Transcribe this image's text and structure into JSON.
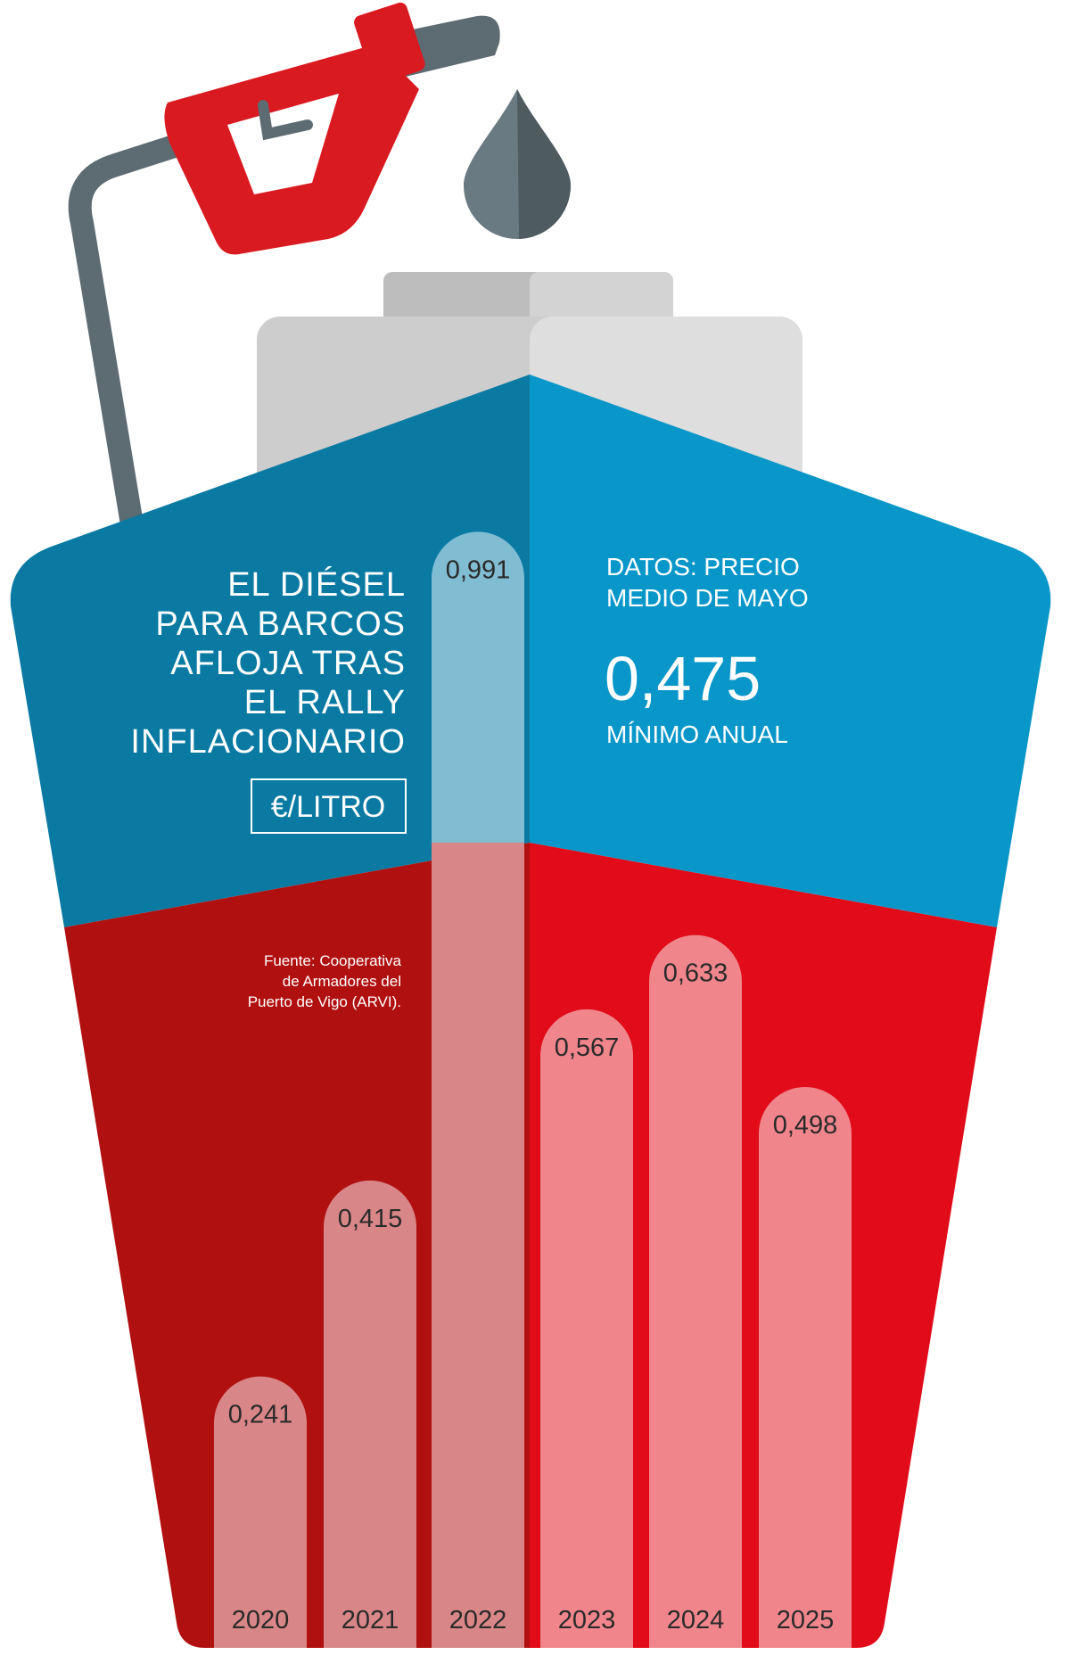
{
  "title_lines": [
    "EL DIÉSEL",
    "PARA BARCOS",
    "AFLOJA TRAS",
    "EL RALLY",
    "INFLACIONARIO"
  ],
  "unit": "€/LITRO",
  "info": {
    "label_line1": "DATOS: PRECIO",
    "label_line2": "MEDIO DE MAYO",
    "value": "0,475",
    "caption": "MÍNIMO ANUAL"
  },
  "source_lines": [
    "Fuente: Cooperativa",
    "de Armadores del",
    "Puerto de Vigo (ARVI)."
  ],
  "colors": {
    "blue_dark": "#0a7aa3",
    "blue_light": "#0997c9",
    "red_dark": "#b0100f",
    "red_light": "#e10b19",
    "bar_fill_dark": "#d98688",
    "bar_fill_light": "#f0868c",
    "bar_fill_2022_blue": "#80bdd3",
    "cabin_light": "#d9d9d9",
    "cabin_dark": "#bdbdbd",
    "nozzle_red": "#d91a20",
    "hose_gray": "#5d6b72",
    "drop_gray": "#6a7a82"
  },
  "icons": {
    "nozzle": "fuel-nozzle-icon",
    "drop": "fuel-drop-icon"
  },
  "chart_data": {
    "type": "bar",
    "title": "EL DIÉSEL PARA BARCOS AFLOJA TRAS EL RALLY INFLACIONARIO",
    "ylabel": "€/LITRO",
    "categories": [
      "2020",
      "2021",
      "2022",
      "2023",
      "2024",
      "2025"
    ],
    "values": [
      0.241,
      0.415,
      0.991,
      0.567,
      0.633,
      0.498
    ],
    "value_labels": [
      "0,241",
      "0,415",
      "0,991",
      "0,567",
      "0,633",
      "0,498"
    ],
    "ylim": [
      0,
      1.0
    ],
    "grid": false,
    "legend": "none"
  }
}
